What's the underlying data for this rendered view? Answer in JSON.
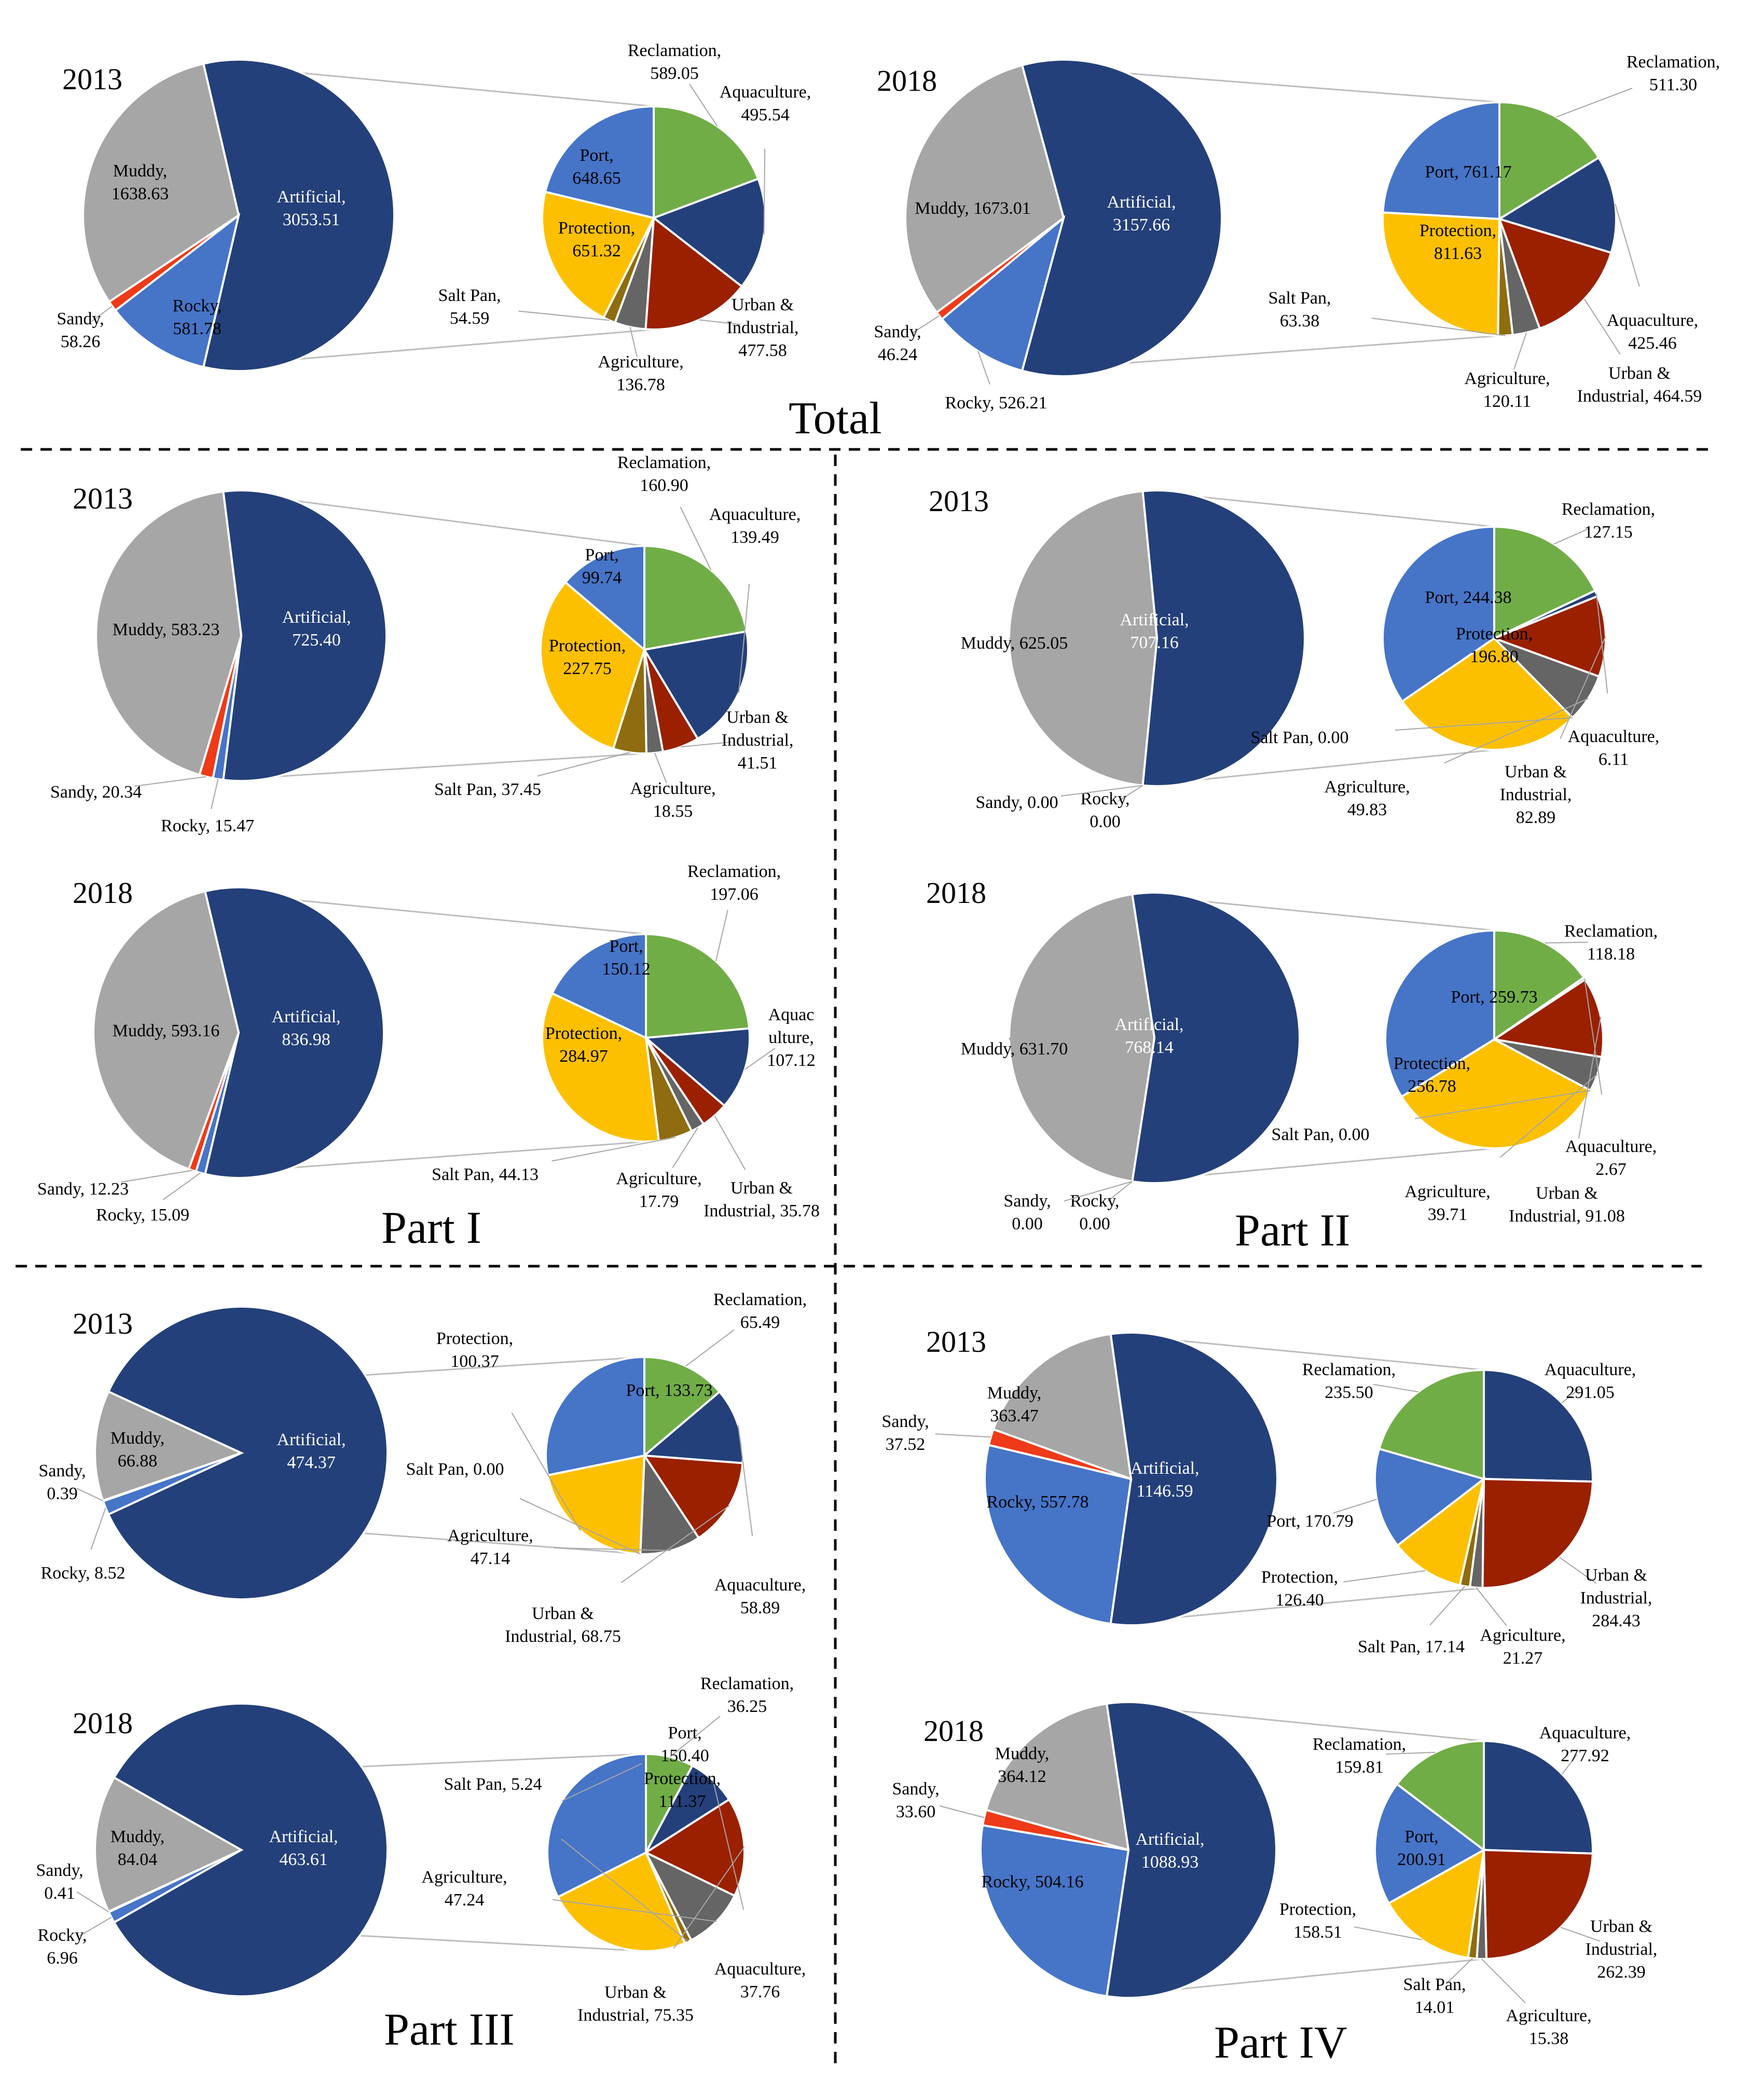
{
  "colors": {
    "Artificial": "#24407a",
    "Muddy": "#a6a6a6",
    "Sandy": "#ee3a18",
    "Rocky": "#4674c7",
    "Port": "#4674c7",
    "Reclamation": "#71ad47",
    "Aquaculture": "#24407a",
    "Urban & Industrial": "#9a2000",
    "Agriculture": "#656565",
    "Salt Pan": "#8e6c0f",
    "Protection": "#fdc000"
  },
  "panels": {
    "total": "Total",
    "part1": "Part I",
    "part2": "Part II",
    "part3": "Part III",
    "part4": "Part IV"
  },
  "chart_data": [
    {
      "type": "pie",
      "title": "Total",
      "year": "2013",
      "main": [
        {
          "name": "Artificial",
          "value": 3053.51,
          "label": [
            "Artificial,",
            "3053.51"
          ]
        },
        {
          "name": "Rocky",
          "value": 581.78,
          "label": [
            "Rocky,",
            "581.78"
          ]
        },
        {
          "name": "Sandy",
          "value": 58.26,
          "label": [
            "Sandy,",
            "58.26"
          ]
        },
        {
          "name": "Muddy",
          "value": 1638.63,
          "label": [
            "Muddy,",
            "1638.63"
          ]
        }
      ],
      "sub": [
        {
          "name": "Reclamation",
          "value": 589.05,
          "label": [
            "Reclamation,",
            "589.05"
          ]
        },
        {
          "name": "Aquaculture",
          "value": 495.54,
          "label": [
            "Aquaculture,",
            "495.54"
          ]
        },
        {
          "name": "Urban & Industrial",
          "value": 477.58,
          "label": [
            "Urban &",
            "Industrial,",
            "477.58"
          ]
        },
        {
          "name": "Agriculture",
          "value": 136.78,
          "label": [
            "Agriculture,",
            "136.78"
          ]
        },
        {
          "name": "Salt Pan",
          "value": 54.59,
          "label": [
            "Salt Pan,",
            "54.59"
          ]
        },
        {
          "name": "Protection",
          "value": 651.32,
          "label": [
            "Protection,",
            "651.32"
          ]
        },
        {
          "name": "Port",
          "value": 648.65,
          "label": [
            "Port,",
            "648.65"
          ]
        }
      ]
    },
    {
      "type": "pie",
      "title": "Total",
      "year": "2018",
      "main": [
        {
          "name": "Artificial",
          "value": 3157.66,
          "label": [
            "Artificial,",
            "3157.66"
          ]
        },
        {
          "name": "Rocky",
          "value": 526.21,
          "label": [
            "Rocky, 526.21"
          ]
        },
        {
          "name": "Sandy",
          "value": 46.24,
          "label": [
            "Sandy,",
            "46.24"
          ]
        },
        {
          "name": "Muddy",
          "value": 1673.01,
          "label": [
            "Muddy, 1673.01"
          ]
        }
      ],
      "sub": [
        {
          "name": "Reclamation",
          "value": 511.3,
          "label": [
            "Reclamation,",
            "511.30"
          ]
        },
        {
          "name": "Aquaculture",
          "value": 425.46,
          "label": [
            "Aquaculture,",
            "425.46"
          ]
        },
        {
          "name": "Urban & Industrial",
          "value": 464.59,
          "label": [
            "Urban &",
            "Industrial, 464.59"
          ]
        },
        {
          "name": "Agriculture",
          "value": 120.11,
          "label": [
            "Agriculture,",
            "120.11"
          ]
        },
        {
          "name": "Salt Pan",
          "value": 63.38,
          "label": [
            "Salt Pan,",
            "63.38"
          ]
        },
        {
          "name": "Protection",
          "value": 811.63,
          "label": [
            "Protection,",
            "811.63"
          ]
        },
        {
          "name": "Port",
          "value": 761.17,
          "label": [
            "Port, 761.17"
          ]
        }
      ]
    },
    {
      "type": "pie",
      "title": "Part I",
      "year": "2013",
      "main": [
        {
          "name": "Artificial",
          "value": 725.4,
          "label": [
            "Artificial,",
            "725.40"
          ]
        },
        {
          "name": "Rocky",
          "value": 15.47,
          "label": [
            "Rocky, 15.47"
          ]
        },
        {
          "name": "Sandy",
          "value": 20.34,
          "label": [
            "Sandy, 20.34"
          ]
        },
        {
          "name": "Muddy",
          "value": 583.23,
          "label": [
            "Muddy, 583.23"
          ]
        }
      ],
      "sub": [
        {
          "name": "Reclamation",
          "value": 160.9,
          "label": [
            "Reclamation,",
            "160.90"
          ]
        },
        {
          "name": "Aquaculture",
          "value": 139.49,
          "label": [
            "Aquaculture,",
            "139.49"
          ]
        },
        {
          "name": "Urban & Industrial",
          "value": 41.51,
          "label": [
            "Urban &",
            "Industrial,",
            "41.51"
          ]
        },
        {
          "name": "Agriculture",
          "value": 18.55,
          "label": [
            "Agriculture,",
            "18.55"
          ]
        },
        {
          "name": "Salt Pan",
          "value": 37.45,
          "label": [
            "Salt Pan, 37.45"
          ]
        },
        {
          "name": "Protection",
          "value": 227.75,
          "label": [
            "Protection,",
            "227.75"
          ]
        },
        {
          "name": "Port",
          "value": 99.74,
          "label": [
            "Port,",
            "99.74"
          ]
        }
      ]
    },
    {
      "type": "pie",
      "title": "Part I",
      "year": "2018",
      "main": [
        {
          "name": "Artificial",
          "value": 836.98,
          "label": [
            "Artificial,",
            "836.98"
          ]
        },
        {
          "name": "Rocky",
          "value": 15.09,
          "label": [
            "Rocky, 15.09"
          ]
        },
        {
          "name": "Sandy",
          "value": 12.23,
          "label": [
            "Sandy, 12.23"
          ]
        },
        {
          "name": "Muddy",
          "value": 593.16,
          "label": [
            "Muddy, 593.16"
          ]
        }
      ],
      "sub": [
        {
          "name": "Reclamation",
          "value": 197.06,
          "label": [
            "Reclamation,",
            "197.06"
          ]
        },
        {
          "name": "Aquaculture",
          "value": 107.12,
          "label": [
            "Aquac",
            "ulture,",
            "107.12"
          ]
        },
        {
          "name": "Urban & Industrial",
          "value": 35.78,
          "label": [
            "Urban &",
            "Industrial, 35.78"
          ]
        },
        {
          "name": "Agriculture",
          "value": 17.79,
          "label": [
            "Agriculture,",
            "17.79"
          ]
        },
        {
          "name": "Salt Pan",
          "value": 44.13,
          "label": [
            "Salt Pan, 44.13"
          ]
        },
        {
          "name": "Protection",
          "value": 284.97,
          "label": [
            "Protection,",
            "284.97"
          ]
        },
        {
          "name": "Port",
          "value": 150.12,
          "label": [
            "Port,",
            "150.12"
          ]
        }
      ]
    },
    {
      "type": "pie",
      "title": "Part II",
      "year": "2013",
      "main": [
        {
          "name": "Artificial",
          "value": 707.16,
          "label": [
            "Artificial,",
            "707.16"
          ]
        },
        {
          "name": "Rocky",
          "value": 0.0,
          "label": [
            "Rocky,",
            "0.00"
          ]
        },
        {
          "name": "Sandy",
          "value": 0.0,
          "label": [
            "Sandy, 0.00"
          ]
        },
        {
          "name": "Muddy",
          "value": 625.05,
          "label": [
            "Muddy, 625.05"
          ]
        }
      ],
      "sub": [
        {
          "name": "Reclamation",
          "value": 127.15,
          "label": [
            "Reclamation,",
            "127.15"
          ]
        },
        {
          "name": "Aquaculture",
          "value": 6.11,
          "label": [
            "Aquaculture,",
            "6.11"
          ]
        },
        {
          "name": "Urban & Industrial",
          "value": 82.89,
          "label": [
            "Urban &",
            "Industrial,",
            "82.89"
          ]
        },
        {
          "name": "Agriculture",
          "value": 49.83,
          "label": [
            "Agriculture,",
            "49.83"
          ]
        },
        {
          "name": "Salt Pan",
          "value": 0.0,
          "label": [
            "Salt Pan, 0.00"
          ]
        },
        {
          "name": "Protection",
          "value": 196.8,
          "label": [
            "Protection,",
            "196.80"
          ]
        },
        {
          "name": "Port",
          "value": 244.38,
          "label": [
            "Port, 244.38"
          ]
        }
      ]
    },
    {
      "type": "pie",
      "title": "Part II",
      "year": "2018",
      "main": [
        {
          "name": "Artificial",
          "value": 768.14,
          "label": [
            "Artificial,",
            "768.14"
          ]
        },
        {
          "name": "Rocky",
          "value": 0.0,
          "label": [
            "Rocky,",
            "0.00"
          ]
        },
        {
          "name": "Sandy",
          "value": 0.0,
          "label": [
            "Sandy,",
            "0.00"
          ]
        },
        {
          "name": "Muddy",
          "value": 631.7,
          "label": [
            "Muddy, 631.70"
          ]
        }
      ],
      "sub": [
        {
          "name": "Reclamation",
          "value": 118.18,
          "label": [
            "Reclamation,",
            "118.18"
          ]
        },
        {
          "name": "Aquaculture",
          "value": 2.67,
          "label": [
            "Aquaculture,",
            "2.67"
          ]
        },
        {
          "name": "Urban & Industrial",
          "value": 91.08,
          "label": [
            "Urban &",
            "Industrial, 91.08"
          ]
        },
        {
          "name": "Agriculture",
          "value": 39.71,
          "label": [
            "Agriculture,",
            "39.71"
          ]
        },
        {
          "name": "Salt Pan",
          "value": 0.0,
          "label": [
            "Salt Pan, 0.00"
          ]
        },
        {
          "name": "Protection",
          "value": 256.78,
          "label": [
            "Protection,",
            "256.78"
          ]
        },
        {
          "name": "Port",
          "value": 259.73,
          "label": [
            "Port, 259.73"
          ]
        }
      ]
    },
    {
      "type": "pie",
      "title": "Part III",
      "year": "2013",
      "main": [
        {
          "name": "Artificial",
          "value": 474.37,
          "label": [
            "Artificial,",
            "474.37"
          ]
        },
        {
          "name": "Rocky",
          "value": 8.52,
          "label": [
            "Rocky, 8.52"
          ]
        },
        {
          "name": "Sandy",
          "value": 0.39,
          "label": [
            "Sandy,",
            "0.39"
          ]
        },
        {
          "name": "Muddy",
          "value": 66.88,
          "label": [
            "Muddy,",
            "66.88"
          ]
        }
      ],
      "sub": [
        {
          "name": "Reclamation",
          "value": 65.49,
          "label": [
            "Reclamation,",
            "65.49"
          ]
        },
        {
          "name": "Aquaculture",
          "value": 58.89,
          "label": [
            "Aquaculture,",
            "58.89"
          ]
        },
        {
          "name": "Urban & Industrial",
          "value": 68.75,
          "label": [
            "Urban &",
            "Industrial, 68.75"
          ]
        },
        {
          "name": "Agriculture",
          "value": 47.14,
          "label": [
            "Agriculture,",
            "47.14"
          ]
        },
        {
          "name": "Salt Pan",
          "value": 0.0,
          "label": [
            "Salt Pan, 0.00"
          ]
        },
        {
          "name": "Protection",
          "value": 100.37,
          "label": [
            "Protection,",
            "100.37"
          ]
        },
        {
          "name": "Port",
          "value": 133.73,
          "label": [
            "Port, 133.73"
          ]
        }
      ]
    },
    {
      "type": "pie",
      "title": "Part III",
      "year": "2018",
      "main": [
        {
          "name": "Artificial",
          "value": 463.61,
          "label": [
            "Artificial,",
            "463.61"
          ]
        },
        {
          "name": "Rocky",
          "value": 6.96,
          "label": [
            "Rocky,",
            "6.96"
          ]
        },
        {
          "name": "Sandy",
          "value": 0.41,
          "label": [
            "Sandy,",
            "0.41"
          ]
        },
        {
          "name": "Muddy",
          "value": 84.04,
          "label": [
            "Muddy,",
            "84.04"
          ]
        }
      ],
      "sub": [
        {
          "name": "Reclamation",
          "value": 36.25,
          "label": [
            "Reclamation,",
            "36.25"
          ]
        },
        {
          "name": "Aquaculture",
          "value": 37.76,
          "label": [
            "Aquaculture,",
            "37.76"
          ]
        },
        {
          "name": "Urban & Industrial",
          "value": 75.35,
          "label": [
            "Urban &",
            "Industrial, 75.35"
          ]
        },
        {
          "name": "Agriculture",
          "value": 47.24,
          "label": [
            "Agriculture,",
            "47.24"
          ]
        },
        {
          "name": "Salt Pan",
          "value": 5.24,
          "label": [
            "Salt Pan, 5.24"
          ]
        },
        {
          "name": "Protection",
          "value": 111.37,
          "label": [
            "Protection,",
            "111.37"
          ]
        },
        {
          "name": "Port",
          "value": 150.4,
          "label": [
            "Port,",
            "150.40"
          ]
        }
      ]
    },
    {
      "type": "pie",
      "title": "Part IV",
      "year": "2013",
      "main": [
        {
          "name": "Artificial",
          "value": 1146.59,
          "label": [
            "Artificial,",
            "1146.59"
          ]
        },
        {
          "name": "Rocky",
          "value": 557.78,
          "label": [
            "Rocky, 557.78"
          ]
        },
        {
          "name": "Sandy",
          "value": 37.52,
          "label": [
            "Sandy,",
            "37.52"
          ]
        },
        {
          "name": "Muddy",
          "value": 363.47,
          "label": [
            "Muddy,",
            "363.47"
          ]
        }
      ],
      "sub": [
        {
          "name": "Aquaculture",
          "value": 291.05,
          "label": [
            "Aquaculture,",
            "291.05"
          ]
        },
        {
          "name": "Urban & Industrial",
          "value": 284.43,
          "label": [
            "Urban &",
            "Industrial,",
            "284.43"
          ]
        },
        {
          "name": "Agriculture",
          "value": 21.27,
          "label": [
            "Agriculture,",
            "21.27"
          ]
        },
        {
          "name": "Salt Pan",
          "value": 17.14,
          "label": [
            "Salt Pan, 17.14"
          ]
        },
        {
          "name": "Protection",
          "value": 126.4,
          "label": [
            "Protection,",
            "126.40"
          ]
        },
        {
          "name": "Port",
          "value": 170.79,
          "label": [
            "Port, 170.79"
          ]
        },
        {
          "name": "Reclamation",
          "value": 235.5,
          "label": [
            "Reclamation,",
            "235.50"
          ]
        }
      ]
    },
    {
      "type": "pie",
      "title": "Part IV",
      "year": "2018",
      "main": [
        {
          "name": "Artificial",
          "value": 1088.93,
          "label": [
            "Artificial,",
            "1088.93"
          ]
        },
        {
          "name": "Rocky",
          "value": 504.16,
          "label": [
            "Rocky, 504.16"
          ]
        },
        {
          "name": "Sandy",
          "value": 33.6,
          "label": [
            "Sandy,",
            "33.60"
          ]
        },
        {
          "name": "Muddy",
          "value": 364.12,
          "label": [
            "Muddy,",
            "364.12"
          ]
        }
      ],
      "sub": [
        {
          "name": "Aquaculture",
          "value": 277.92,
          "label": [
            "Aquaculture,",
            "277.92"
          ]
        },
        {
          "name": "Urban & Industrial",
          "value": 262.39,
          "label": [
            "Urban &",
            "Industrial,",
            "262.39"
          ]
        },
        {
          "name": "Agriculture",
          "value": 15.38,
          "label": [
            "Agriculture,",
            "15.38"
          ]
        },
        {
          "name": "Salt Pan",
          "value": 14.01,
          "label": [
            "Salt Pan,",
            "14.01"
          ]
        },
        {
          "name": "Protection",
          "value": 158.51,
          "label": [
            "Protection,",
            "158.51"
          ]
        },
        {
          "name": "Port",
          "value": 200.91,
          "label": [
            "Port,",
            "200.91"
          ]
        },
        {
          "name": "Reclamation",
          "value": 159.81,
          "label": [
            "Reclamation,",
            "159.81"
          ]
        }
      ]
    }
  ]
}
